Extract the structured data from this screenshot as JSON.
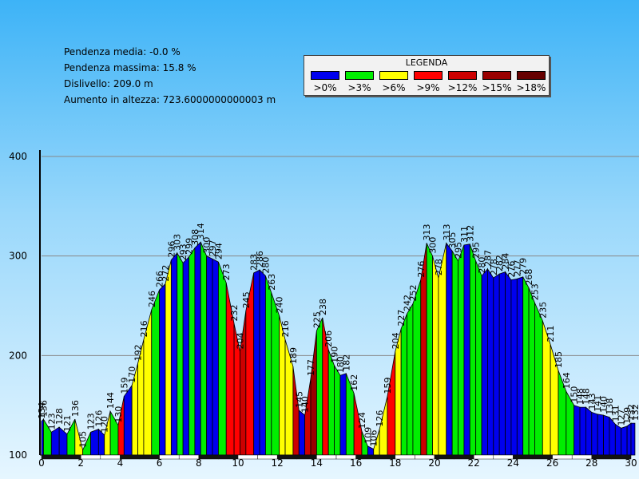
{
  "stats": {
    "avg_slope": "Pendenza media: -0.0 %",
    "max_slope": "Pendenza massima: 15.8 %",
    "elevation_range": "Dislivello: 209.0 m",
    "elevation_gain": "Aumento in altezza: 723.6000000000003 m"
  },
  "legend": {
    "title": "LEGENDA",
    "items": [
      {
        "label": ">0%",
        "color": "#0000ee"
      },
      {
        "label": ">3%",
        "color": "#00ee00"
      },
      {
        "label": ">6%",
        "color": "#ffff00"
      },
      {
        "label": ">9%",
        "color": "#ff0000"
      },
      {
        "label": ">12%",
        "color": "#cc0000"
      },
      {
        "label": ">15%",
        "color": "#990000"
      },
      {
        "label": ">18%",
        "color": "#660000"
      }
    ]
  },
  "chart_data": {
    "type": "area",
    "title": "",
    "xlabel": "",
    "ylabel": "",
    "xlim": [
      0,
      30
    ],
    "ylim": [
      100,
      410
    ],
    "yticks": [
      100,
      200,
      300,
      400
    ],
    "xticks": [
      0,
      2,
      4,
      6,
      8,
      10,
      12,
      14,
      16,
      18,
      20,
      22,
      24,
      26,
      28,
      30
    ],
    "grid": "horizontal",
    "segment_colors": [
      "#0000ee",
      "#00ee00",
      "#ffff00",
      "#ff0000",
      "#cc0000",
      "#990000",
      "#660000"
    ],
    "points": [
      {
        "x": 0,
        "y": 134,
        "label": "134"
      },
      {
        "x": 0.1,
        "y": 136,
        "label": "136"
      },
      {
        "x": 0.5,
        "y": 123,
        "label": "123"
      },
      {
        "x": 0.9,
        "y": 128,
        "label": "128"
      },
      {
        "x": 1.3,
        "y": 121,
        "label": "121"
      },
      {
        "x": 1.7,
        "y": 136,
        "label": "136"
      },
      {
        "x": 2.1,
        "y": 105,
        "label": "105"
      },
      {
        "x": 2.5,
        "y": 123,
        "label": "123"
      },
      {
        "x": 2.9,
        "y": 126,
        "label": "126"
      },
      {
        "x": 3.2,
        "y": 120,
        "label": "120"
      },
      {
        "x": 3.5,
        "y": 144,
        "label": "144"
      },
      {
        "x": 3.9,
        "y": 130,
        "label": "130"
      },
      {
        "x": 4.2,
        "y": 159,
        "label": "159"
      },
      {
        "x": 4.6,
        "y": 170,
        "label": "170"
      },
      {
        "x": 4.9,
        "y": 192,
        "label": "192"
      },
      {
        "x": 5.2,
        "y": 216,
        "label": "216"
      },
      {
        "x": 5.6,
        "y": 246,
        "label": "246"
      },
      {
        "x": 6.0,
        "y": 266,
        "label": "266"
      },
      {
        "x": 6.3,
        "y": 272,
        "label": "272"
      },
      {
        "x": 6.6,
        "y": 296,
        "label": "296"
      },
      {
        "x": 6.9,
        "y": 303,
        "label": "303"
      },
      {
        "x": 7.2,
        "y": 293,
        "label": "293"
      },
      {
        "x": 7.5,
        "y": 299,
        "label": "299"
      },
      {
        "x": 7.8,
        "y": 308,
        "label": "308"
      },
      {
        "x": 8.1,
        "y": 314,
        "label": "314"
      },
      {
        "x": 8.4,
        "y": 300,
        "label": "300"
      },
      {
        "x": 8.7,
        "y": 297,
        "label": "297"
      },
      {
        "x": 9.0,
        "y": 294,
        "label": "294"
      },
      {
        "x": 9.4,
        "y": 273,
        "label": "273"
      },
      {
        "x": 9.8,
        "y": 232,
        "label": "232"
      },
      {
        "x": 10.1,
        "y": 204,
        "label": "204"
      },
      {
        "x": 10.4,
        "y": 245,
        "label": "245"
      },
      {
        "x": 10.8,
        "y": 283,
        "label": "283"
      },
      {
        "x": 11.1,
        "y": 286,
        "label": "286"
      },
      {
        "x": 11.4,
        "y": 280,
        "label": "280"
      },
      {
        "x": 11.7,
        "y": 263,
        "label": "263"
      },
      {
        "x": 12.1,
        "y": 240,
        "label": "240"
      },
      {
        "x": 12.4,
        "y": 216,
        "label": "216"
      },
      {
        "x": 12.8,
        "y": 189,
        "label": "189"
      },
      {
        "x": 13.1,
        "y": 145,
        "label": "145"
      },
      {
        "x": 13.4,
        "y": 140,
        "label": "140"
      },
      {
        "x": 13.7,
        "y": 177,
        "label": "177"
      },
      {
        "x": 14.0,
        "y": 225,
        "label": "225"
      },
      {
        "x": 14.3,
        "y": 238,
        "label": "238"
      },
      {
        "x": 14.6,
        "y": 206,
        "label": "206"
      },
      {
        "x": 14.9,
        "y": 190,
        "label": "190"
      },
      {
        "x": 15.2,
        "y": 180,
        "label": "180"
      },
      {
        "x": 15.5,
        "y": 182,
        "label": "182"
      },
      {
        "x": 15.9,
        "y": 162,
        "label": "162"
      },
      {
        "x": 16.3,
        "y": 124,
        "label": "124"
      },
      {
        "x": 16.6,
        "y": 109,
        "label": "109"
      },
      {
        "x": 16.9,
        "y": 106,
        "label": "106"
      },
      {
        "x": 17.2,
        "y": 126,
        "label": "126"
      },
      {
        "x": 17.6,
        "y": 159,
        "label": "159"
      },
      {
        "x": 18.0,
        "y": 204,
        "label": "204"
      },
      {
        "x": 18.3,
        "y": 227,
        "label": "227"
      },
      {
        "x": 18.6,
        "y": 242,
        "label": "242"
      },
      {
        "x": 18.9,
        "y": 252,
        "label": "252"
      },
      {
        "x": 19.3,
        "y": 276,
        "label": "276"
      },
      {
        "x": 19.6,
        "y": 313,
        "label": "313"
      },
      {
        "x": 19.9,
        "y": 300,
        "label": "300"
      },
      {
        "x": 20.2,
        "y": 278,
        "label": "278"
      },
      {
        "x": 20.6,
        "y": 313,
        "label": "313"
      },
      {
        "x": 20.9,
        "y": 305,
        "label": "305"
      },
      {
        "x": 21.2,
        "y": 295,
        "label": "295"
      },
      {
        "x": 21.5,
        "y": 311,
        "label": "311"
      },
      {
        "x": 21.8,
        "y": 312,
        "label": "312"
      },
      {
        "x": 22.1,
        "y": 295,
        "label": "295"
      },
      {
        "x": 22.4,
        "y": 280,
        "label": "280"
      },
      {
        "x": 22.7,
        "y": 287,
        "label": "287"
      },
      {
        "x": 23.0,
        "y": 278,
        "label": "278"
      },
      {
        "x": 23.3,
        "y": 282,
        "label": "282"
      },
      {
        "x": 23.6,
        "y": 284,
        "label": "284"
      },
      {
        "x": 23.9,
        "y": 276,
        "label": "276"
      },
      {
        "x": 24.2,
        "y": 277,
        "label": "277"
      },
      {
        "x": 24.5,
        "y": 279,
        "label": "279"
      },
      {
        "x": 24.8,
        "y": 268,
        "label": "268"
      },
      {
        "x": 25.1,
        "y": 253,
        "label": "253"
      },
      {
        "x": 25.5,
        "y": 235,
        "label": "235"
      },
      {
        "x": 25.9,
        "y": 211,
        "label": "211"
      },
      {
        "x": 26.3,
        "y": 185,
        "label": "185"
      },
      {
        "x": 26.7,
        "y": 164,
        "label": "164"
      },
      {
        "x": 27.1,
        "y": 150,
        "label": "150"
      },
      {
        "x": 27.4,
        "y": 148,
        "label": "148"
      },
      {
        "x": 27.7,
        "y": 148,
        "label": "148"
      },
      {
        "x": 28.0,
        "y": 143,
        "label": "143"
      },
      {
        "x": 28.3,
        "y": 141,
        "label": "141"
      },
      {
        "x": 28.6,
        "y": 140,
        "label": "140"
      },
      {
        "x": 28.9,
        "y": 138,
        "label": "138"
      },
      {
        "x": 29.2,
        "y": 131,
        "label": "131"
      },
      {
        "x": 29.5,
        "y": 127,
        "label": "127"
      },
      {
        "x": 29.8,
        "y": 129,
        "label": "129"
      },
      {
        "x": 30.0,
        "y": 132,
        "label": "132"
      },
      {
        "x": 30.2,
        "y": 132,
        "label": "132"
      }
    ]
  }
}
